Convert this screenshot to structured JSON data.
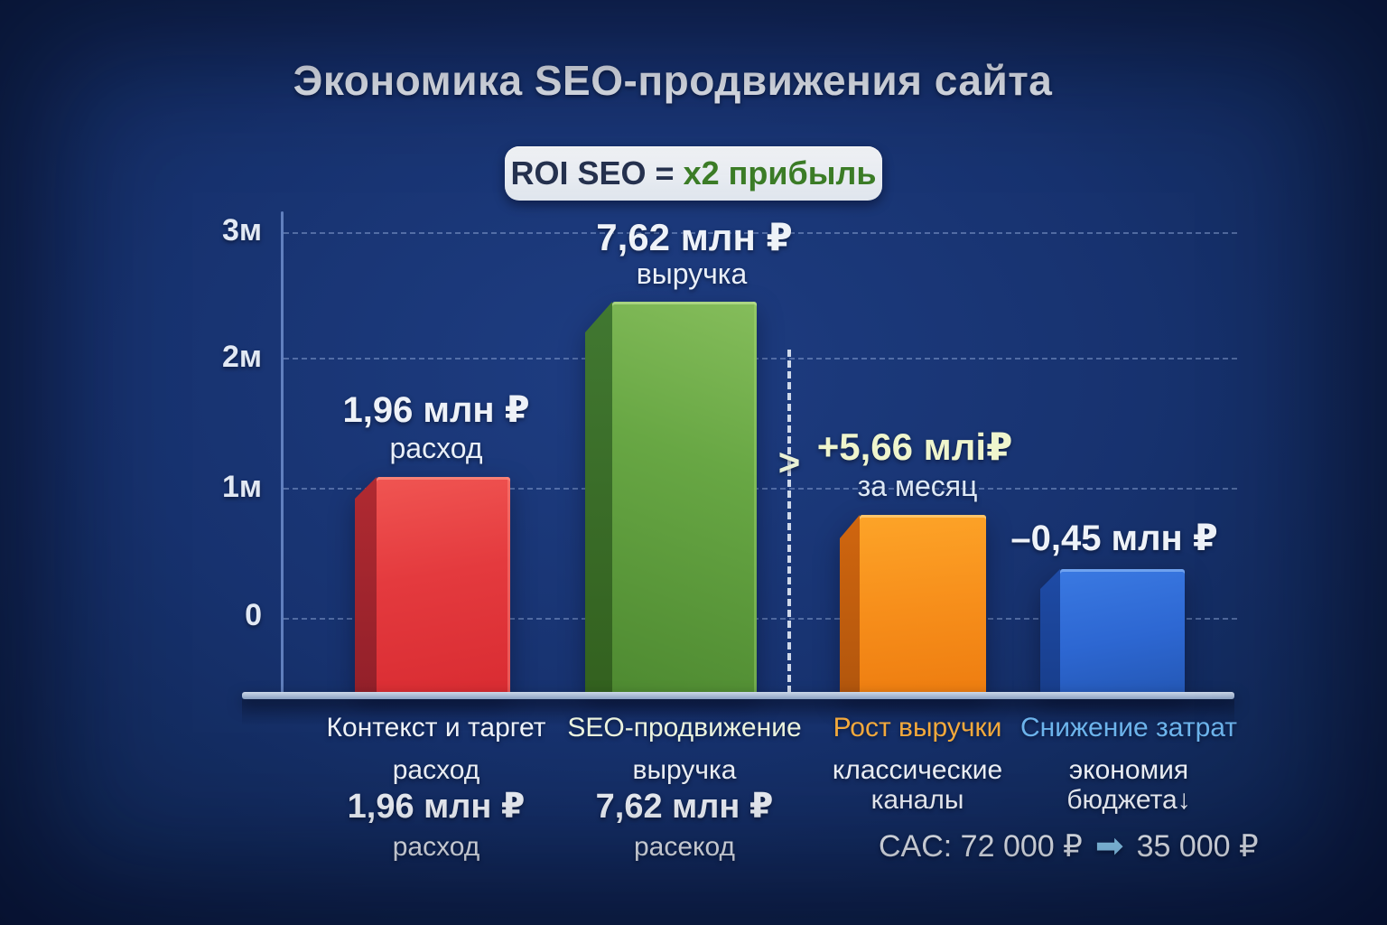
{
  "title": "Экономика SEO-продвижения сайта",
  "badge": {
    "left": "ROI SEO =",
    "right": "x2 прибыль"
  },
  "yaxis": {
    "ticks": [
      "3м",
      "2м",
      "1м",
      "0"
    ]
  },
  "annotations": {
    "context_value": "1,96 млн ₽",
    "context_metric": "расход",
    "seo_value": "7,62 млн ₽",
    "seo_metric": "выручка",
    "gain_value": "+5,66 млі₽",
    "gain_metric": "за месяц",
    "chevron": ">",
    "savings_value": "–0,45 млн ₽"
  },
  "columns": [
    {
      "title": "Контекст и таргет",
      "lines": [
        "расход",
        "1,96 млн ₽",
        "расход"
      ]
    },
    {
      "title": "SEO-продвижение",
      "lines": [
        "выручка",
        "7,62 млн ₽",
        "расекод"
      ]
    },
    {
      "title": "Рост выручки",
      "lines": [
        "классические",
        "каналы"
      ]
    },
    {
      "title": "Снижение затрат",
      "lines": [
        "экономия",
        "бюджета↓"
      ]
    }
  ],
  "footer": {
    "cac_before": "CAC: 72 000 ₽",
    "arrow": "➡",
    "cac_after": "35 000 ₽"
  },
  "colors": {
    "background": "#17326f",
    "bar_red": "#e23a3f",
    "bar_green": "#63a441",
    "bar_orange": "#f68e1b",
    "bar_blue": "#2d67d2",
    "badge_bg": "#e9eef4",
    "badge_accent_green": "#3c7d27",
    "label_orange": "#f3a93c",
    "label_blue": "#6db4ec",
    "gain_text": "#eff5cd"
  },
  "chart_data": {
    "type": "bar",
    "title": "Экономика SEO-продвижения сайта",
    "subtitle": "ROI SEO = x2 прибыль",
    "unit": "млн ₽",
    "categories": [
      "Контекст и таргет (расход)",
      "SEO-продвижение (выручка)",
      "Рост выручки (классические каналы)",
      "Снижение затрат (экономия бюджета)"
    ],
    "values": [
      1.96,
      7.62,
      5.66,
      -0.45
    ],
    "value_labels": [
      "1,96 млн ₽ расход",
      "7,62 млн ₽ выручка",
      "+5,66 млі₽ за месяц",
      "–0,45 млн ₽"
    ],
    "bar_colors": [
      "#e23a3f",
      "#63a441",
      "#f68e1b",
      "#2d67d2"
    ],
    "y_ticks": [
      "3м",
      "2м",
      "1м",
      "0"
    ],
    "ylim": [
      0,
      3
    ],
    "grid": true,
    "legend_position": "none",
    "annotations": [
      "ROI SEO = x2 прибыль",
      "+5,66 млі₽ за месяц",
      "–0,45 млн ₽",
      "CAC: 72 000 ₽ → 35 000 ₽"
    ]
  }
}
